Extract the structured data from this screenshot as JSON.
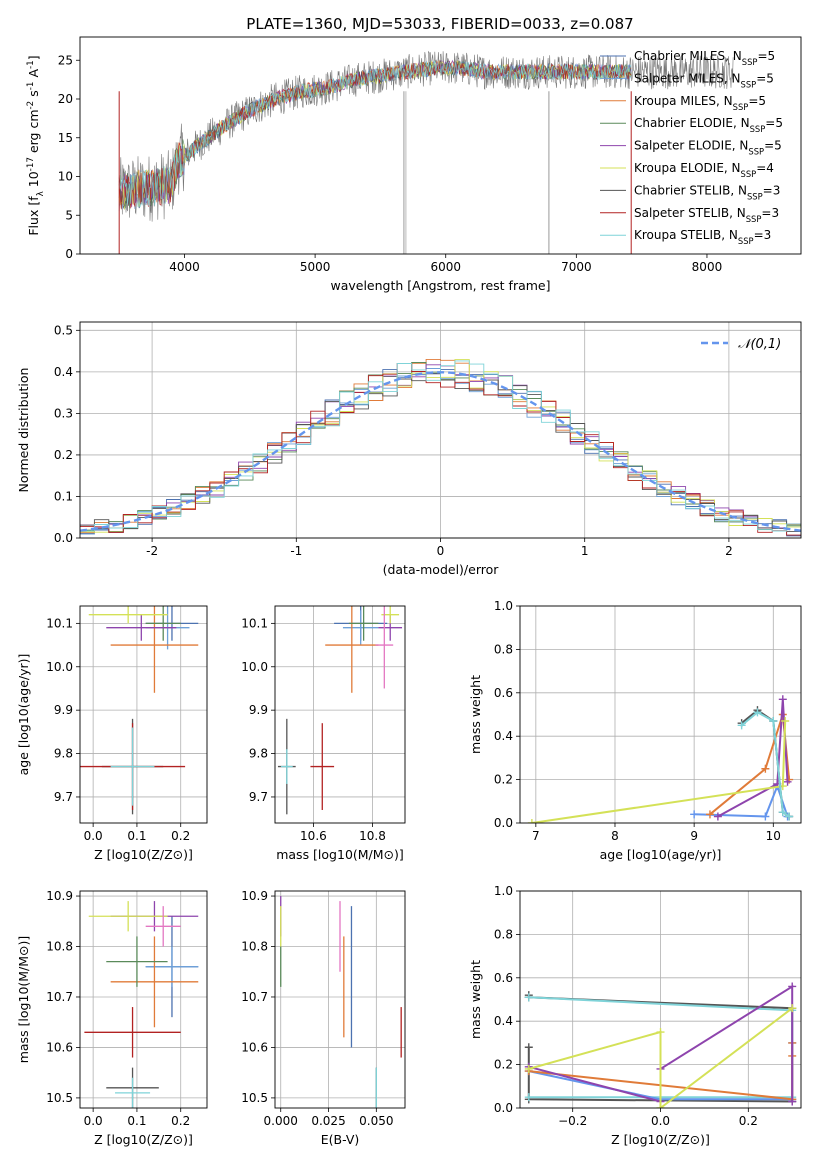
{
  "figure_title": "PLATE=1360, MJD=53033, FIBERID=0033, z=0.087",
  "colors": {
    "chabrier_miles": "#4c72b0",
    "salpeter_miles": "#6ea0d8",
    "kroupa_miles": "#e07b39",
    "chabrier_elodie": "#5a8a5a",
    "salpeter_elodie": "#8e44ad",
    "kroupa_elodie": "#d4e157",
    "chabrier_stelib": "#555555",
    "salpeter_stelib": "#b22222",
    "kroupa_stelib": "#7fd3d8",
    "gaussian": "#6495ed",
    "grid": "#b0b0b0"
  },
  "legend_series": [
    {
      "name": "Chabrier MILES",
      "nssp": "5",
      "color": "#4c72b0"
    },
    {
      "name": "Salpeter MILES",
      "nssp": "5",
      "color": "#6ea0d8"
    },
    {
      "name": "Kroupa MILES",
      "nssp": "5",
      "color": "#e07b39"
    },
    {
      "name": "Chabrier ELODIE",
      "nssp": "5",
      "color": "#5a8a5a"
    },
    {
      "name": "Salpeter ELODIE",
      "nssp": "5",
      "color": "#8e44ad"
    },
    {
      "name": "Kroupa ELODIE",
      "nssp": "4",
      "color": "#d4e157"
    },
    {
      "name": "Chabrier STELIB",
      "nssp": "3",
      "color": "#555555"
    },
    {
      "name": "Salpeter STELIB",
      "nssp": "3",
      "color": "#b22222"
    },
    {
      "name": "Kroupa STELIB",
      "nssp": "3",
      "color": "#7fd3d8"
    }
  ],
  "chart_data": [
    {
      "id": "spectrum",
      "type": "line",
      "xlabel": "wavelength [Angstrom, rest frame]",
      "ylabel": "Flux [f_λ 10^-17 erg cm^-2 s^-1 A^-1]",
      "xlim": [
        3200,
        8720
      ],
      "ylim": [
        0,
        28
      ],
      "xticks": [
        4000,
        5000,
        6000,
        7000,
        8000
      ],
      "yticks": [
        0,
        5,
        10,
        15,
        20,
        25
      ],
      "legend": "top-right",
      "continuum": {
        "x": [
          3500,
          3700,
          3900,
          3950,
          4100,
          4300,
          4500,
          4700,
          4900,
          5100,
          5300,
          5500,
          5700,
          5900,
          6100,
          6300,
          6500,
          6700,
          6900,
          7100,
          7300,
          7420
        ],
        "y": [
          8,
          8.5,
          9,
          12,
          14,
          16.5,
          18.5,
          20,
          21,
          21.5,
          22.5,
          23,
          23.5,
          24,
          24,
          23.5,
          23.5,
          23.5,
          23.5,
          23.5,
          23.5,
          23.5
        ]
      },
      "data_xrange": [
        3500,
        8200
      ]
    },
    {
      "id": "residuals",
      "type": "line",
      "xlabel": "(data-model)/error",
      "ylabel": "Normed distribution",
      "xlim": [
        -2.5,
        2.5
      ],
      "ylim": [
        0,
        0.52
      ],
      "xticks": [
        -2,
        -1,
        0,
        1,
        2
      ],
      "yticks": [
        0.0,
        0.1,
        0.2,
        0.3,
        0.4,
        0.5
      ],
      "legend": "top-right",
      "series": [
        {
          "name": "𝒩(0,1)",
          "mean": 0,
          "sigma": 1
        }
      ],
      "histogram_bin_width": 0.1
    },
    {
      "id": "z-vs-age",
      "type": "scatter",
      "xlabel": "Z [log10(Z/Z⊙)]",
      "ylabel": "age [log10(age/yr)]",
      "xlim": [
        -0.03,
        0.26
      ],
      "ylim": [
        9.64,
        10.14
      ],
      "xticks": [
        0.0,
        0.1,
        0.2
      ],
      "yticks": [
        9.7,
        9.8,
        9.9,
        10.0,
        10.1
      ],
      "points": [
        {
          "x": 0.18,
          "y": 10.1,
          "xerr": 0.06,
          "yerr": 0.04,
          "color": "#4c72b0"
        },
        {
          "x": 0.17,
          "y": 10.09,
          "xerr": 0.05,
          "yerr": 0.05,
          "color": "#6ea0d8"
        },
        {
          "x": 0.14,
          "y": 10.05,
          "xerr": 0.1,
          "yerr": 0.11,
          "color": "#e07b39"
        },
        {
          "x": 0.16,
          "y": 10.1,
          "xerr": 0.04,
          "yerr": 0.04,
          "color": "#5a8a5a"
        },
        {
          "x": 0.11,
          "y": 10.09,
          "xerr": 0.08,
          "yerr": 0.03,
          "color": "#8e44ad"
        },
        {
          "x": 0.08,
          "y": 10.12,
          "xerr": 0.09,
          "yerr": 0.02,
          "color": "#d4e157"
        },
        {
          "x": 0.09,
          "y": 9.77,
          "xerr": 0.07,
          "yerr": 0.11,
          "color": "#555555"
        },
        {
          "x": 0.09,
          "y": 9.77,
          "xerr": 0.12,
          "yerr": 0.1,
          "color": "#b22222"
        },
        {
          "x": 0.09,
          "y": 9.77,
          "xerr": 0.05,
          "yerr": 0.09,
          "color": "#7fd3d8"
        }
      ]
    },
    {
      "id": "mass-vs-age",
      "type": "scatter",
      "xlabel": "mass [log10(M/M⊙)]",
      "ylabel": "",
      "xlim": [
        10.47,
        10.91
      ],
      "ylim": [
        9.64,
        10.14
      ],
      "xticks": [
        10.6,
        10.8
      ],
      "yticks": [
        9.7,
        9.8,
        9.9,
        10.0,
        10.1
      ],
      "points": [
        {
          "x": 10.76,
          "y": 10.1,
          "xerr": 0.09,
          "yerr": 0.04,
          "color": "#4c72b0"
        },
        {
          "x": 10.76,
          "y": 10.09,
          "xerr": 0.06,
          "yerr": 0.04,
          "color": "#6ea0d8"
        },
        {
          "x": 10.73,
          "y": 10.05,
          "xerr": 0.09,
          "yerr": 0.11,
          "color": "#e07b39"
        },
        {
          "x": 10.77,
          "y": 10.1,
          "xerr": 0.05,
          "yerr": 0.04,
          "color": "#5a8a5a"
        },
        {
          "x": 10.86,
          "y": 10.09,
          "xerr": 0.04,
          "yerr": 0.03,
          "color": "#8e44ad"
        },
        {
          "x": 10.86,
          "y": 10.12,
          "xerr": 0.03,
          "yerr": 0.02,
          "color": "#d4e157"
        },
        {
          "x": 10.84,
          "y": 10.05,
          "xerr": 0.03,
          "yerr": 0.1,
          "color": "#e377c2"
        },
        {
          "x": 10.51,
          "y": 9.77,
          "xerr": 0.03,
          "yerr": 0.11,
          "color": "#555555"
        },
        {
          "x": 10.63,
          "y": 9.77,
          "xerr": 0.04,
          "yerr": 0.1,
          "color": "#b22222"
        },
        {
          "x": 10.51,
          "y": 9.77,
          "xerr": 0.02,
          "yerr": 0.04,
          "color": "#7fd3d8"
        }
      ]
    },
    {
      "id": "age-vs-weight",
      "type": "line",
      "xlabel": "age [log10(age/yr)]",
      "ylabel": "mass weight",
      "xlim": [
        6.8,
        10.35
      ],
      "ylim": [
        0,
        1.0
      ],
      "xticks": [
        7,
        8,
        9,
        10
      ],
      "yticks": [
        0.0,
        0.2,
        0.4,
        0.6,
        0.8,
        1.0
      ],
      "series": [
        {
          "x": [
            9.0,
            9.9,
            10.05,
            10.18
          ],
          "y": [
            0.04,
            0.03,
            0.17,
            0.03
          ],
          "color": "#6495ed"
        },
        {
          "x": [
            9.2,
            9.9,
            10.12,
            10.2
          ],
          "y": [
            0.04,
            0.25,
            0.5,
            0.2
          ],
          "color": "#e07b39"
        },
        {
          "x": [
            9.3,
            10.05,
            10.12,
            10.18
          ],
          "y": [
            0.03,
            0.18,
            0.57,
            0.19
          ],
          "color": "#8e44ad"
        },
        {
          "x": [
            6.95,
            10.12,
            10.15
          ],
          "y": [
            0.0,
            0.17,
            0.47
          ],
          "color": "#d4e157"
        },
        {
          "x": [
            9.6,
            9.8,
            10.0,
            10.12,
            10.2
          ],
          "y": [
            0.46,
            0.52,
            0.47,
            0.05,
            0.03
          ],
          "color": "#555555"
        },
        {
          "x": [
            9.6,
            9.8,
            10.0,
            10.12,
            10.2
          ],
          "y": [
            0.45,
            0.51,
            0.47,
            0.05,
            0.03
          ],
          "color": "#7fd3d8"
        }
      ]
    },
    {
      "id": "z-vs-mass",
      "type": "scatter",
      "xlabel": "Z [log10(Z/Z⊙)]",
      "ylabel": "mass [log10(M/M⊙)]",
      "xlim": [
        -0.03,
        0.26
      ],
      "ylim": [
        10.48,
        10.91
      ],
      "xticks": [
        0.0,
        0.1,
        0.2
      ],
      "yticks": [
        10.5,
        10.6,
        10.7,
        10.8,
        10.9
      ],
      "points": [
        {
          "x": 0.18,
          "y": 10.76,
          "xerr": 0.06,
          "yerr": 0.1,
          "color": "#4c72b0"
        },
        {
          "x": 0.18,
          "y": 10.76,
          "xerr": 0.06,
          "yerr": 0.04,
          "color": "#6ea0d8"
        },
        {
          "x": 0.14,
          "y": 10.73,
          "xerr": 0.1,
          "yerr": 0.09,
          "color": "#e07b39"
        },
        {
          "x": 0.1,
          "y": 10.77,
          "xerr": 0.07,
          "yerr": 0.05,
          "color": "#5a8a5a"
        },
        {
          "x": 0.14,
          "y": 10.86,
          "xerr": 0.1,
          "yerr": 0.03,
          "color": "#8e44ad"
        },
        {
          "x": 0.08,
          "y": 10.86,
          "xerr": 0.09,
          "yerr": 0.03,
          "color": "#d4e157"
        },
        {
          "x": 0.16,
          "y": 10.84,
          "xerr": 0.04,
          "yerr": 0.04,
          "color": "#e377c2"
        },
        {
          "x": 0.09,
          "y": 10.52,
          "xerr": 0.06,
          "yerr": 0.04,
          "color": "#555555"
        },
        {
          "x": 0.09,
          "y": 10.63,
          "xerr": 0.11,
          "yerr": 0.05,
          "color": "#b22222"
        },
        {
          "x": 0.09,
          "y": 10.51,
          "xerr": 0.04,
          "yerr": 0.03,
          "color": "#7fd3d8"
        }
      ]
    },
    {
      "id": "ebv-vs-mass",
      "type": "scatter",
      "xlabel": "E(B-V)",
      "ylabel": "",
      "xlim": [
        -0.003,
        0.065
      ],
      "ylim": [
        10.48,
        10.91
      ],
      "xticks": [
        0.0,
        0.025,
        0.05
      ],
      "xticklabels": [
        "0.000",
        "0.025",
        "0.050"
      ],
      "yticks": [
        10.5,
        10.6,
        10.7,
        10.8,
        10.9
      ],
      "points": [
        {
          "x": 0.0,
          "y": 10.86,
          "yerr": 0.04,
          "color": "#8e44ad"
        },
        {
          "x": 0.0,
          "y": 10.84,
          "yerr": 0.04,
          "color": "#d4e157"
        },
        {
          "x": 0.0,
          "y": 10.76,
          "yerr": 0.04,
          "color": "#5a8a5a"
        },
        {
          "x": 0.031,
          "y": 10.82,
          "yerr": 0.07,
          "color": "#e377c2"
        },
        {
          "x": 0.033,
          "y": 10.72,
          "yerr": 0.1,
          "color": "#e07b39"
        },
        {
          "x": 0.037,
          "y": 10.74,
          "yerr": 0.14,
          "color": "#4c72b0"
        },
        {
          "x": 0.05,
          "y": 10.52,
          "yerr": 0.04,
          "color": "#555555"
        },
        {
          "x": 0.05,
          "y": 10.52,
          "yerr": 0.04,
          "color": "#7fd3d8"
        },
        {
          "x": 0.063,
          "y": 10.63,
          "yerr": 0.05,
          "color": "#b22222"
        }
      ]
    },
    {
      "id": "z-vs-weight",
      "type": "line",
      "xlabel": "Z [log10(Z/Z⊙)]",
      "ylabel": "mass weight",
      "xlim": [
        -0.32,
        0.32
      ],
      "ylim": [
        0,
        1.0
      ],
      "xticks": [
        -0.2,
        0.0,
        0.2
      ],
      "xticklabels": [
        "−0.2",
        "0.0",
        "0.2"
      ],
      "yticks": [
        0.0,
        0.2,
        0.4,
        0.6,
        0.8,
        1.0
      ],
      "series": [
        {
          "x": [
            -0.3,
            -0.3,
            0.3,
            0.3,
            -0.3,
            -0.3
          ],
          "y": [
            0.52,
            0.51,
            0.46,
            0.03,
            0.04,
            0.28
          ],
          "color": "#555555"
        },
        {
          "x": [
            -0.3,
            0.3,
            0.3,
            -0.3
          ],
          "y": [
            0.51,
            0.45,
            0.05,
            0.05
          ],
          "color": "#7fd3d8"
        },
        {
          "x": [
            -0.3,
            0.0,
            0.3,
            0.3
          ],
          "y": [
            0.17,
            0.04,
            0.04,
            0.3
          ],
          "color": "#6495ed"
        },
        {
          "x": [
            -0.3,
            0.3,
            0.3,
            0.3
          ],
          "y": [
            0.17,
            0.04,
            0.24,
            0.3
          ],
          "color": "#e07b39"
        },
        {
          "x": [
            -0.3,
            0.0,
            0.0,
            0.3,
            0.3
          ],
          "y": [
            0.19,
            0.03,
            0.18,
            0.56,
            0.03
          ],
          "color": "#8e44ad"
        },
        {
          "x": [
            -0.3,
            0.0,
            0.0,
            0.3
          ],
          "y": [
            0.18,
            0.35,
            0.0,
            0.46
          ],
          "color": "#d4e157"
        }
      ]
    }
  ]
}
